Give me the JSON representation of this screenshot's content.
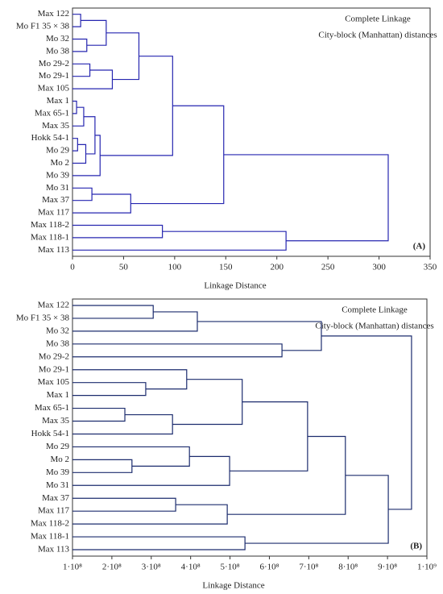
{
  "chart_data": [
    {
      "type": "dendrogram",
      "title": "Complete Linkage",
      "subtitle": "City-block (Manhattan) distances",
      "panel_label": "(A)",
      "x_label": "Linkage Distance",
      "color": "#2626b0",
      "leaves": [
        "Max 122",
        "Mo F1 35 × 38",
        "Mo 32",
        "Mo 38",
        "Mo 29-2",
        "Mo 29-1",
        "Max 105",
        "Max 1",
        "Max 65-1",
        "Max 35",
        "Hokk 54-1",
        "Mo 29",
        "Mo 2",
        "Mo 39",
        "Mo 31",
        "Max 37",
        "Max 117",
        "Max 118-2",
        "Max 118-1",
        "Max 113"
      ],
      "merges": [
        [
          0,
          1,
          8
        ],
        [
          2,
          3,
          14
        ],
        [
          20,
          21,
          33
        ],
        [
          4,
          5,
          17
        ],
        [
          23,
          6,
          39
        ],
        [
          22,
          24,
          65
        ],
        [
          7,
          8,
          4
        ],
        [
          26,
          9,
          11
        ],
        [
          10,
          11,
          5
        ],
        [
          28,
          12,
          13
        ],
        [
          27,
          29,
          22
        ],
        [
          30,
          13,
          27
        ],
        [
          25,
          31,
          98
        ],
        [
          14,
          15,
          19
        ],
        [
          33,
          16,
          57
        ],
        [
          32,
          34,
          148
        ],
        [
          17,
          18,
          88
        ],
        [
          36,
          19,
          209
        ],
        [
          35,
          37,
          309
        ]
      ],
      "xlim": [
        0,
        350
      ],
      "xticks": [
        0,
        50,
        100,
        150,
        200,
        250,
        300,
        350
      ]
    },
    {
      "type": "dendrogram",
      "title": "Complete Linkage",
      "subtitle": "City-block (Manhattan) distances",
      "panel_label": "(B)",
      "x_label": "Linkage Distance",
      "color": "#1c2c6e",
      "leaves": [
        "Max 122",
        "Mo F1 35 × 38",
        "Mo 32",
        "Mo 38",
        "Mo 29-2",
        "Mo 29-1",
        "Max 105",
        "Max 1",
        "Max 65-1",
        "Max 35",
        "Hokk 54-1",
        "Mo 29",
        "Mo 2",
        "Mo 39",
        "Mo 31",
        "Max 37",
        "Max 117",
        "Max 118-2",
        "Max 118-1",
        "Max 113"
      ],
      "merges": [
        [
          0,
          1,
          305000000
        ],
        [
          20,
          2,
          417000000
        ],
        [
          3,
          4,
          632000000
        ],
        [
          21,
          22,
          732000000
        ],
        [
          6,
          7,
          286000000
        ],
        [
          5,
          24,
          390000000
        ],
        [
          8,
          9,
          233000000
        ],
        [
          26,
          10,
          354000000
        ],
        [
          25,
          27,
          531000000
        ],
        [
          12,
          13,
          251000000
        ],
        [
          11,
          29,
          397000000
        ],
        [
          30,
          14,
          499000000
        ],
        [
          28,
          31,
          697000000
        ],
        [
          15,
          16,
          362000000
        ],
        [
          33,
          17,
          493000000
        ],
        [
          32,
          34,
          793000000
        ],
        [
          18,
          19,
          538000000
        ],
        [
          35,
          36,
          902000000
        ],
        [
          23,
          37,
          961000000
        ]
      ],
      "xlim": [
        100000000,
        1000000000
      ],
      "xticks": [
        {
          "value": 100000000,
          "label": "1·10⁸"
        },
        {
          "value": 200000000,
          "label": "2·10⁸"
        },
        {
          "value": 300000000,
          "label": "3·10⁸"
        },
        {
          "value": 400000000,
          "label": "4·10⁸"
        },
        {
          "value": 500000000,
          "label": "5·10⁸"
        },
        {
          "value": 600000000,
          "label": "6·10⁸"
        },
        {
          "value": 700000000,
          "label": "7·10⁸"
        },
        {
          "value": 800000000,
          "label": "8·10⁸"
        },
        {
          "value": 900000000,
          "label": "9·10⁸"
        },
        {
          "value": 1000000000,
          "label": "1·10⁹"
        }
      ]
    }
  ]
}
